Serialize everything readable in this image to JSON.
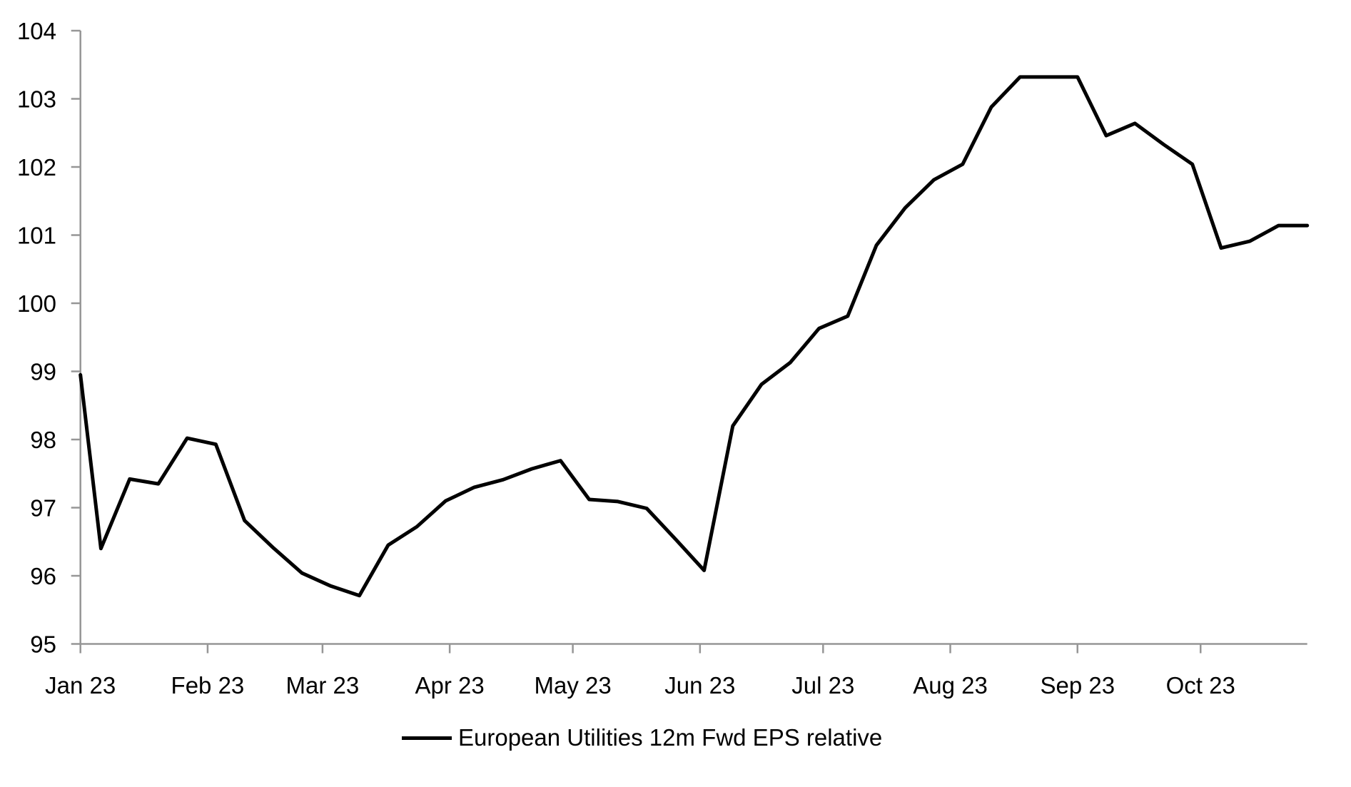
{
  "chart_data": {
    "type": "line",
    "title": "",
    "background": "#ffffff",
    "grid": "off",
    "legend": {
      "position": "bottom"
    },
    "y_axis": {
      "min": 95,
      "max": 104,
      "tick_step": 1,
      "ticks": [
        104,
        103,
        102,
        101,
        100,
        99,
        98,
        97,
        96,
        95
      ]
    },
    "x_axis": {
      "months": [
        {
          "label": "Jan 23",
          "date": "2023-01-01"
        },
        {
          "label": "Feb 23",
          "date": "2023-02-01"
        },
        {
          "label": "Mar 23",
          "date": "2023-03-01"
        },
        {
          "label": "Apr 23",
          "date": "2023-04-01"
        },
        {
          "label": "May 23",
          "date": "2023-05-01"
        },
        {
          "label": "Jun 23",
          "date": "2023-06-01"
        },
        {
          "label": "Jul 23",
          "date": "2023-07-01"
        },
        {
          "label": "Aug 23",
          "date": "2023-08-01"
        },
        {
          "label": "Sep 23",
          "date": "2023-09-01"
        },
        {
          "label": "Oct 23",
          "date": "2023-10-01"
        }
      ]
    },
    "series": [
      {
        "name": "European Utilities 12m Fwd EPS relative",
        "color": "#000000",
        "points": [
          {
            "date": "2023-01-01",
            "value": 98.95
          },
          {
            "date": "2023-01-06",
            "value": 96.4
          },
          {
            "date": "2023-01-13",
            "value": 97.42
          },
          {
            "date": "2023-01-20",
            "value": 97.35
          },
          {
            "date": "2023-01-27",
            "value": 98.02
          },
          {
            "date": "2023-02-03",
            "value": 97.93
          },
          {
            "date": "2023-02-10",
            "value": 96.81
          },
          {
            "date": "2023-02-17",
            "value": 96.41
          },
          {
            "date": "2023-02-24",
            "value": 96.04
          },
          {
            "date": "2023-03-03",
            "value": 95.85
          },
          {
            "date": "2023-03-10",
            "value": 95.71
          },
          {
            "date": "2023-03-17",
            "value": 96.45
          },
          {
            "date": "2023-03-24",
            "value": 96.72
          },
          {
            "date": "2023-03-31",
            "value": 97.1
          },
          {
            "date": "2023-04-07",
            "value": 97.3
          },
          {
            "date": "2023-04-14",
            "value": 97.41
          },
          {
            "date": "2023-04-21",
            "value": 97.57
          },
          {
            "date": "2023-04-28",
            "value": 97.69
          },
          {
            "date": "2023-05-05",
            "value": 97.12
          },
          {
            "date": "2023-05-12",
            "value": 97.09
          },
          {
            "date": "2023-05-19",
            "value": 96.99
          },
          {
            "date": "2023-05-26",
            "value": 96.54
          },
          {
            "date": "2023-06-02",
            "value": 96.08
          },
          {
            "date": "2023-06-09",
            "value": 98.2
          },
          {
            "date": "2023-06-16",
            "value": 98.81
          },
          {
            "date": "2023-06-23",
            "value": 99.13
          },
          {
            "date": "2023-06-30",
            "value": 99.63
          },
          {
            "date": "2023-07-07",
            "value": 99.81
          },
          {
            "date": "2023-07-14",
            "value": 100.85
          },
          {
            "date": "2023-07-21",
            "value": 101.4
          },
          {
            "date": "2023-07-28",
            "value": 101.81
          },
          {
            "date": "2023-08-04",
            "value": 102.04
          },
          {
            "date": "2023-08-11",
            "value": 102.88
          },
          {
            "date": "2023-08-18",
            "value": 103.32
          },
          {
            "date": "2023-08-25",
            "value": 103.32
          },
          {
            "date": "2023-09-01",
            "value": 103.32
          },
          {
            "date": "2023-09-08",
            "value": 102.46
          },
          {
            "date": "2023-09-15",
            "value": 102.64
          },
          {
            "date": "2023-09-22",
            "value": 102.33
          },
          {
            "date": "2023-09-29",
            "value": 102.04
          },
          {
            "date": "2023-10-06",
            "value": 100.81
          },
          {
            "date": "2023-10-13",
            "value": 100.91
          },
          {
            "date": "2023-10-20",
            "value": 101.14
          },
          {
            "date": "2023-10-27",
            "value": 101.14
          }
        ]
      }
    ]
  },
  "colors": {
    "axis": "#969696",
    "line": "#000000",
    "background": "#ffffff",
    "text": "#000000"
  }
}
